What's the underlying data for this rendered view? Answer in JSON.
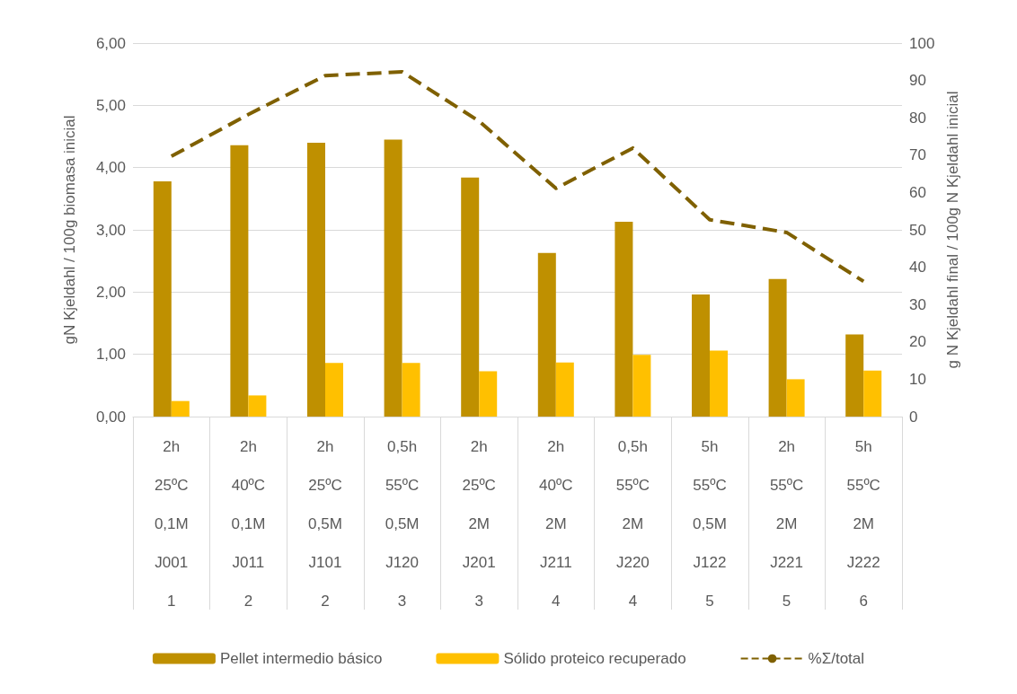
{
  "chart_data": {
    "type": "bar",
    "ylabel": "gN Kjeldahl / 100g biomasa inicial",
    "y2label": "g N Kjeldahl final / 100g N Kjeldahl inicial",
    "categories": [
      "2h\n25ºC\n0,1M\nJ001\n1",
      "2h\n40ºC\n0,1M\nJ011\n2",
      "2h\n25ºC\n0,5M\nJ101\n2",
      "0,5h\n55ºC\n0,5M\nJ120\n3",
      "2h\n25ºC\n2M\nJ201\n3",
      "2h\n40ºC\n2M\nJ211\n4",
      "0,5h\n55ºC\n2M\nJ220\n4",
      "5h\n55ºC\n0,5M\nJ122\n5",
      "2h\n55ºC\n2M\nJ221\n5",
      "5h\n55ºC\n2M\nJ222\n6"
    ],
    "series": [
      {
        "name": "Pellet intermedio básico",
        "color": "#bf9000",
        "values": [
          3.78,
          4.36,
          4.4,
          4.45,
          3.84,
          2.63,
          3.13,
          1.96,
          2.21,
          1.32
        ]
      },
      {
        "name": "Sólido proteico recuperado",
        "color": "#ffc000",
        "values": [
          0.25,
          0.34,
          0.86,
          0.86,
          0.73,
          0.87,
          0.99,
          1.06,
          0.6,
          0.74
        ]
      },
      {
        "name": "%Σ/total",
        "type": "line",
        "axis": "y2",
        "color": "#7f6000",
        "line_style": "dashed",
        "values": [
          69.7,
          80.9,
          91.3,
          92.3,
          79.1,
          61.1,
          71.9,
          52.7,
          49.3,
          36.2
        ]
      }
    ],
    "ylim": [
      0,
      6
    ],
    "yticks": [
      {
        "value": 0,
        "label": "0,00"
      },
      {
        "value": 1,
        "label": "1,00"
      },
      {
        "value": 2,
        "label": "2,00"
      },
      {
        "value": 3,
        "label": "3,00"
      },
      {
        "value": 4,
        "label": "4,00"
      },
      {
        "value": 5,
        "label": "5,00"
      },
      {
        "value": 6,
        "label": "6,00"
      }
    ],
    "y2lim": [
      0,
      100
    ],
    "y2ticks": [
      0,
      10,
      20,
      30,
      40,
      50,
      60,
      70,
      80,
      90,
      100
    ],
    "grid": "y",
    "legend": "bottom",
    "marker": "none"
  }
}
